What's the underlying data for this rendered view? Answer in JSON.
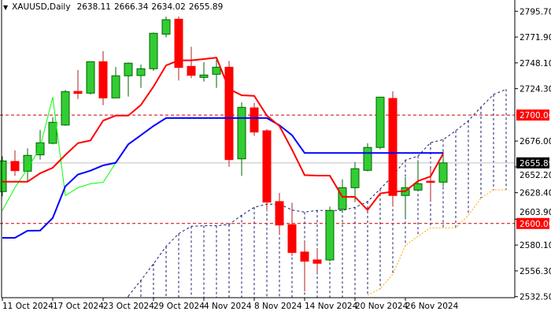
{
  "header": {
    "menu_icon": "triangle-down-icon",
    "symbol": "XAUUSD,Daily",
    "open": "2638.11",
    "high": "2666.34",
    "low": "2634.02",
    "close": "2655.89"
  },
  "colors": {
    "background": "#FFFFFF",
    "bull_body": "#32CD32",
    "bull_edge": "#006400",
    "bear_body": "#FF0000",
    "bear_wick": "#B22222",
    "tenkan": "#FF0000",
    "kijun": "#0000FF",
    "chikou": "#00FF00",
    "senkou_a": "#191970",
    "senkou_b": "#FFA500",
    "level_line": "#CC0000",
    "price_line": "#C0C0C0"
  },
  "chart_data": {
    "type": "candlestick",
    "indicator": "ichimoku",
    "ylim": [
      2532.5,
      2795.7
    ],
    "grid": false,
    "y_ticks": [
      "2795.70",
      "2771.90",
      "2748.10",
      "2724.30",
      "2676.00",
      "2652.20",
      "2628.40",
      "2603.90",
      "2580.10",
      "2556.30",
      "2532.50"
    ],
    "x_tick_labels": [
      {
        "bar": 0,
        "label": "11 Oct 2024"
      },
      {
        "bar": 4,
        "label": "17 Oct 2024"
      },
      {
        "bar": 8,
        "label": "23 Oct 2024"
      },
      {
        "bar": 12,
        "label": "29 Oct 2024"
      },
      {
        "bar": 16,
        "label": "4 Nov 2024"
      },
      {
        "bar": 20,
        "label": "8 Nov 2024"
      },
      {
        "bar": 24,
        "label": "14 Nov 2024"
      },
      {
        "bar": 28,
        "label": "20 Nov 2024"
      },
      {
        "bar": 32,
        "label": "26 Nov 2024"
      }
    ],
    "dates": [
      "2024-10-11",
      "2024-10-14",
      "2024-10-15",
      "2024-10-16",
      "2024-10-17",
      "2024-10-18",
      "2024-10-21",
      "2024-10-22",
      "2024-10-23",
      "2024-10-24",
      "2024-10-25",
      "2024-10-28",
      "2024-10-29",
      "2024-10-30",
      "2024-10-31",
      "2024-11-01",
      "2024-11-04",
      "2024-11-05",
      "2024-11-06",
      "2024-11-07",
      "2024-11-08",
      "2024-11-11",
      "2024-11-12",
      "2024-11-13",
      "2024-11-14",
      "2024-11-15",
      "2024-11-18",
      "2024-11-19",
      "2024-11-20",
      "2024-11-21",
      "2024-11-22",
      "2024-11-25",
      "2024-11-26",
      "2024-11-27",
      "2024-11-28",
      "2024-11-29"
    ],
    "ohlc": [
      [
        2629.4,
        2662.0,
        2625.0,
        2657.7
      ],
      [
        2657.2,
        2667.4,
        2643.9,
        2648.7
      ],
      [
        2648.2,
        2669.3,
        2638.5,
        2662.8
      ],
      [
        2663.3,
        2686.3,
        2658.9,
        2674.4
      ],
      [
        2673.9,
        2697.9,
        2673.0,
        2693.3
      ],
      [
        2690.8,
        2723.1,
        2690.0,
        2721.6
      ],
      [
        2721.8,
        2741.5,
        2714.8,
        2719.9
      ],
      [
        2720.2,
        2749.5,
        2718.9,
        2749.2
      ],
      [
        2749.2,
        2758.9,
        2709.0,
        2715.8
      ],
      [
        2715.8,
        2744.4,
        2715.8,
        2736.2
      ],
      [
        2736.2,
        2748.5,
        2717.0,
        2747.8
      ],
      [
        2736.4,
        2746.5,
        2725.0,
        2742.7
      ],
      [
        2742.7,
        2776.0,
        2740.7,
        2775.4
      ],
      [
        2774.6,
        2790.8,
        2771.7,
        2787.9
      ],
      [
        2788.4,
        2790.8,
        2731.8,
        2743.9
      ],
      [
        2744.9,
        2763.0,
        2734.0,
        2736.6
      ],
      [
        2734.7,
        2748.7,
        2730.8,
        2736.9
      ],
      [
        2737.6,
        2751.2,
        2725.0,
        2744.1
      ],
      [
        2744.1,
        2749.9,
        2652.3,
        2658.9
      ],
      [
        2659.6,
        2711.7,
        2643.9,
        2707.1
      ],
      [
        2706.6,
        2711.2,
        2680.7,
        2684.3
      ],
      [
        2685.5,
        2687.0,
        2611.3,
        2619.7
      ],
      [
        2620.2,
        2628.2,
        2590.2,
        2598.6
      ],
      [
        2598.9,
        2619.2,
        2570.0,
        2573.2
      ],
      [
        2573.7,
        2583.4,
        2537.4,
        2565.2
      ],
      [
        2566.4,
        2577.3,
        2554.3,
        2563.3
      ],
      [
        2566.4,
        2615.6,
        2565.0,
        2612.0
      ],
      [
        2613.0,
        2640.7,
        2611.0,
        2633.0
      ],
      [
        2633.0,
        2656.5,
        2619.7,
        2650.5
      ],
      [
        2649.0,
        2673.9,
        2648.0,
        2670.1
      ],
      [
        2670.1,
        2716.5,
        2668.6,
        2716.5
      ],
      [
        2715.3,
        2721.8,
        2616.0,
        2625.8
      ],
      [
        2625.8,
        2642.7,
        2605.1,
        2633.0
      ],
      [
        2630.8,
        2658.4,
        2630.0,
        2636.7
      ],
      [
        2639.0,
        2651.6,
        2620.9,
        2637.9
      ],
      [
        2638.11,
        2666.34,
        2634.02,
        2655.89
      ]
    ],
    "tenkan_sen": [
      2638.5,
      2638.5,
      2638.5,
      2646.3,
      2651.4,
      2663.2,
      2674.1,
      2676.6,
      2694.8,
      2699.5,
      2699.5,
      2709.3,
      2726.2,
      2745.8,
      2750.4,
      2750.4,
      2751.6,
      2752.9,
      2724.0,
      2718.2,
      2717.7,
      2699.5,
      2689.9,
      2668.1,
      2644.6,
      2644.1,
      2644.1,
      2624.5,
      2624.5,
      2612.4,
      2627.7,
      2629.4,
      2629.8,
      2639.1,
      2643.4,
      2664.5
    ],
    "kijun_sen": [
      2586.8,
      2586.8,
      2593.3,
      2593.5,
      2605.1,
      2634.2,
      2645.1,
      2648.7,
      2653.6,
      2656.0,
      2673.0,
      2681.4,
      2689.9,
      2697.2,
      2697.2,
      2697.2,
      2697.2,
      2697.2,
      2697.2,
      2697.2,
      2697.2,
      2697.2,
      2690.6,
      2681.4,
      2665.0,
      2665.0,
      2665.0,
      2665.0,
      2665.0,
      2665.0,
      2665.0,
      2665.0,
      2665.0,
      2665.0,
      2665.0,
      2665.0
    ],
    "chikou_shift": 26,
    "cloud_start_bar": 10,
    "senkou_span_a": [
      2533.0,
      2547.6,
      2562.8,
      2578.8,
      2590.6,
      2597.4,
      2597.9,
      2597.9,
      2599.1,
      2607.6,
      2614.9,
      2617.8,
      2617.8,
      2612.4,
      2610.5,
      2612.0,
      2612.0,
      2612.0,
      2614.9,
      2620.2,
      2631.8,
      2643.9,
      2658.4,
      2662.1,
      2674.6,
      2677.3,
      2685.5,
      2694.8,
      2707.3,
      2718.9,
      2723.8
    ],
    "senkou_span_b": [
      null,
      null,
      null,
      null,
      null,
      null,
      null,
      null,
      null,
      null,
      null,
      null,
      null,
      null,
      null,
      null,
      null,
      null,
      null,
      2533.8,
      2539.8,
      2553.1,
      2579.7,
      2588.2,
      2596.0,
      2596.0,
      2596.0,
      2607.6,
      2623.3,
      2631.1,
      2631.1
    ],
    "levels": [
      {
        "price": 2700.0,
        "label": "2700.00"
      },
      {
        "price": 2600.0,
        "label": "2600.00"
      }
    ],
    "current_price": {
      "price": 2655.89,
      "label": "2655.89"
    }
  }
}
